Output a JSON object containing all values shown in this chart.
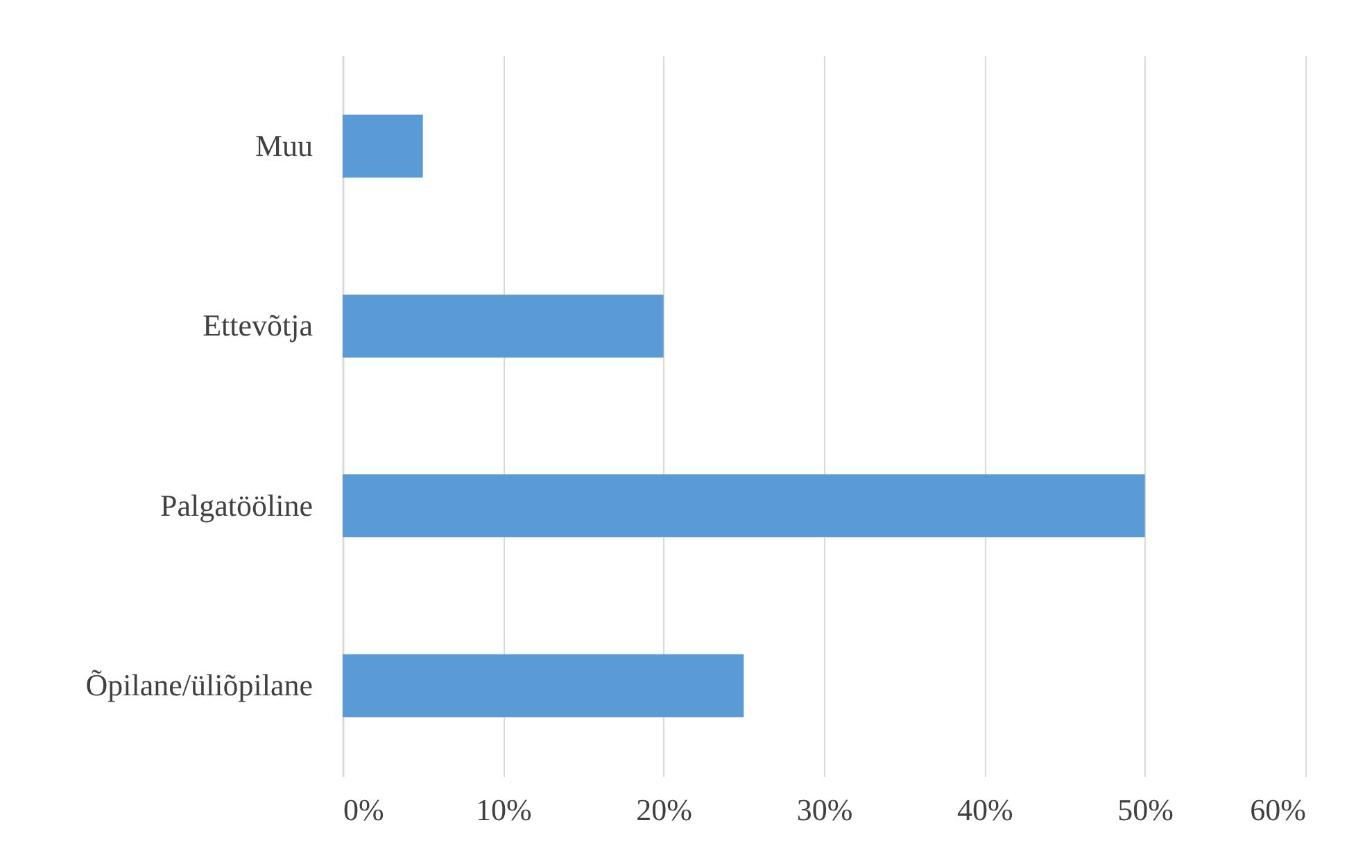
{
  "chart_data": {
    "type": "bar",
    "orientation": "horizontal",
    "categories": [
      "Muu",
      "Ettevõtja",
      "Palgatööline",
      "Õpilane/üliõpilane"
    ],
    "values": [
      5,
      20,
      50,
      25
    ],
    "color": "#5b9bd5",
    "xlim": [
      0,
      60
    ],
    "xticks": [
      {
        "value": 0,
        "label": "0%"
      },
      {
        "value": 10,
        "label": "10%"
      },
      {
        "value": 20,
        "label": "20%"
      },
      {
        "value": 30,
        "label": "30%"
      },
      {
        "value": 40,
        "label": "40%"
      },
      {
        "value": 50,
        "label": "50%"
      },
      {
        "value": 60,
        "label": "60%"
      }
    ],
    "grid": "x"
  }
}
